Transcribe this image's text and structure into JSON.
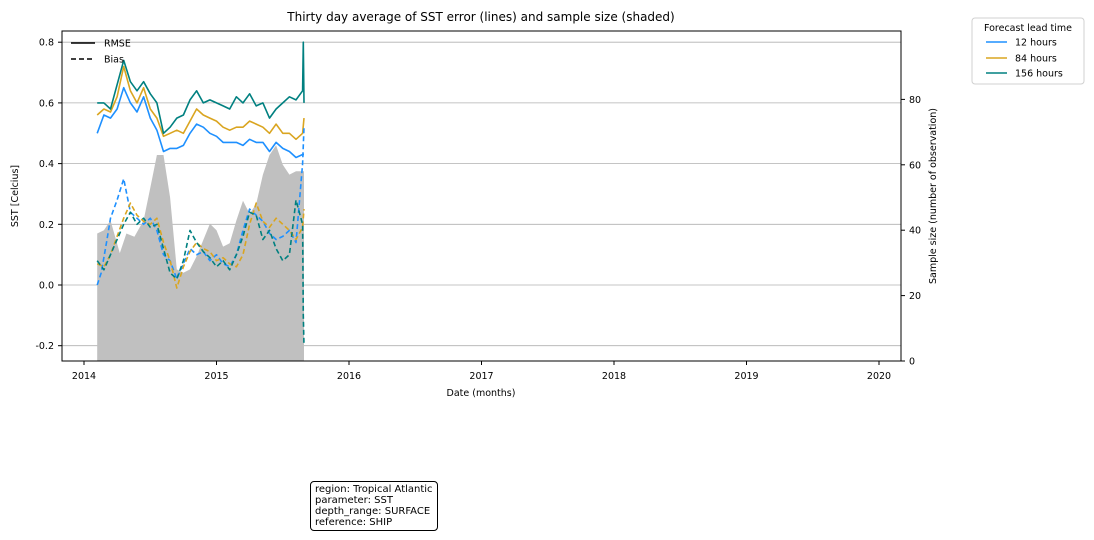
{
  "chart_data": {
    "type": "line",
    "title": "Thirty day average of SST error (lines) and sample size (shaded)",
    "xlabel": "Date (months)",
    "ylabel": "SST [Celcius]",
    "ylabel_right": "Sample size (number of observation)",
    "xlim": [
      2014.0,
      2020.0
    ],
    "ylim": [
      -0.25,
      0.82
    ],
    "ylim_right": [
      0,
      100
    ],
    "x_ticks": [
      2014,
      2015,
      2016,
      2017,
      2018,
      2019,
      2020
    ],
    "y_ticks": [
      -0.2,
      0.0,
      0.2,
      0.4,
      0.6,
      0.8
    ],
    "y_ticks_right": [
      0,
      20,
      40,
      60,
      80
    ],
    "grid": "horizontal",
    "style_legend": {
      "placement": "top-left",
      "entries": [
        {
          "label": "RMSE",
          "dash": "solid"
        },
        {
          "label": "Bias",
          "dash": "dashed"
        }
      ]
    },
    "color_legend": {
      "placement": "outside-top-right",
      "title": "Forecast lead time",
      "entries": [
        {
          "label": "12 hours",
          "color": "#1e90ff"
        },
        {
          "label": "84 hours",
          "color": "#daa520"
        },
        {
          "label": "156 hours",
          "color": "#008080"
        }
      ]
    },
    "sample_size": {
      "color": "#c0c0c0",
      "x": [
        2014.1,
        2014.15,
        2014.2,
        2014.27,
        2014.32,
        2014.38,
        2014.45,
        2014.5,
        2014.55,
        2014.6,
        2014.65,
        2014.7,
        2014.75,
        2014.8,
        2014.85,
        2014.9,
        2014.95,
        2015.0,
        2015.05,
        2015.1,
        2015.15,
        2015.2,
        2015.25,
        2015.3,
        2015.35,
        2015.4,
        2015.45,
        2015.5,
        2015.55,
        2015.6,
        2015.66
      ],
      "values": [
        39,
        40,
        43,
        33,
        39,
        38,
        43,
        53,
        63,
        63,
        50,
        28,
        27,
        28,
        32,
        37,
        42,
        40,
        35,
        36,
        43,
        49,
        45,
        48,
        57,
        63,
        66,
        60,
        57,
        58,
        58
      ]
    },
    "series": [
      {
        "name": "12 hours",
        "metric": "RMSE",
        "color": "#1e90ff",
        "dash": "solid",
        "x": [
          2014.1,
          2014.15,
          2014.2,
          2014.25,
          2014.3,
          2014.35,
          2014.4,
          2014.45,
          2014.5,
          2014.55,
          2014.6,
          2014.65,
          2014.7,
          2014.75,
          2014.8,
          2014.85,
          2014.9,
          2014.95,
          2015.0,
          2015.05,
          2015.1,
          2015.15,
          2015.2,
          2015.25,
          2015.3,
          2015.35,
          2015.4,
          2015.45,
          2015.5,
          2015.55,
          2015.6,
          2015.65,
          2015.66
        ],
        "values": [
          0.5,
          0.56,
          0.55,
          0.58,
          0.65,
          0.6,
          0.57,
          0.62,
          0.55,
          0.51,
          0.44,
          0.45,
          0.45,
          0.46,
          0.5,
          0.53,
          0.52,
          0.5,
          0.49,
          0.47,
          0.47,
          0.47,
          0.46,
          0.48,
          0.47,
          0.47,
          0.44,
          0.47,
          0.45,
          0.44,
          0.42,
          0.43,
          0.43
        ]
      },
      {
        "name": "84 hours",
        "metric": "RMSE",
        "color": "#daa520",
        "dash": "solid",
        "x": [
          2014.1,
          2014.15,
          2014.2,
          2014.25,
          2014.3,
          2014.35,
          2014.4,
          2014.45,
          2014.5,
          2014.55,
          2014.6,
          2014.65,
          2014.7,
          2014.75,
          2014.8,
          2014.85,
          2014.9,
          2014.95,
          2015.0,
          2015.05,
          2015.1,
          2015.15,
          2015.2,
          2015.25,
          2015.3,
          2015.35,
          2015.4,
          2015.45,
          2015.5,
          2015.55,
          2015.6,
          2015.65,
          2015.66
        ],
        "values": [
          0.56,
          0.58,
          0.57,
          0.62,
          0.72,
          0.64,
          0.6,
          0.65,
          0.58,
          0.55,
          0.49,
          0.5,
          0.51,
          0.5,
          0.54,
          0.58,
          0.56,
          0.55,
          0.54,
          0.52,
          0.51,
          0.52,
          0.52,
          0.54,
          0.53,
          0.52,
          0.5,
          0.53,
          0.5,
          0.5,
          0.48,
          0.5,
          0.55
        ]
      },
      {
        "name": "156 hours",
        "metric": "RMSE",
        "color": "#008080",
        "dash": "solid",
        "x": [
          2014.1,
          2014.15,
          2014.2,
          2014.25,
          2014.3,
          2014.35,
          2014.4,
          2014.45,
          2014.5,
          2014.55,
          2014.6,
          2014.65,
          2014.7,
          2014.75,
          2014.8,
          2014.85,
          2014.9,
          2014.95,
          2015.0,
          2015.05,
          2015.1,
          2015.15,
          2015.2,
          2015.25,
          2015.3,
          2015.35,
          2015.4,
          2015.45,
          2015.5,
          2015.55,
          2015.6,
          2015.65,
          2015.655,
          2015.66
        ],
        "values": [
          0.6,
          0.6,
          0.58,
          0.66,
          0.74,
          0.67,
          0.64,
          0.67,
          0.63,
          0.6,
          0.5,
          0.52,
          0.55,
          0.56,
          0.61,
          0.64,
          0.6,
          0.61,
          0.6,
          0.59,
          0.58,
          0.62,
          0.6,
          0.63,
          0.59,
          0.6,
          0.55,
          0.58,
          0.6,
          0.62,
          0.61,
          0.64,
          0.8,
          0.6
        ]
      },
      {
        "name": "12 hours",
        "metric": "Bias",
        "color": "#1e90ff",
        "dash": "dashed",
        "x": [
          2014.1,
          2014.13,
          2014.17,
          2014.2,
          2014.25,
          2014.3,
          2014.35,
          2014.4,
          2014.45,
          2014.5,
          2014.55,
          2014.6,
          2014.65,
          2014.7,
          2014.75,
          2014.8,
          2014.85,
          2014.9,
          2014.95,
          2015.0,
          2015.05,
          2015.1,
          2015.15,
          2015.2,
          2015.25,
          2015.3,
          2015.35,
          2015.4,
          2015.45,
          2015.5,
          2015.55,
          2015.6,
          2015.65,
          2015.66
        ],
        "values": [
          0.0,
          0.04,
          0.14,
          0.22,
          0.28,
          0.35,
          0.24,
          0.22,
          0.2,
          0.22,
          0.18,
          0.1,
          0.08,
          0.02,
          0.07,
          0.12,
          0.1,
          0.11,
          0.08,
          0.1,
          0.07,
          0.06,
          0.1,
          0.18,
          0.25,
          0.23,
          0.21,
          0.17,
          0.15,
          0.16,
          0.18,
          0.14,
          0.4,
          0.52
        ]
      },
      {
        "name": "84 hours",
        "metric": "Bias",
        "color": "#daa520",
        "dash": "dashed",
        "x": [
          2014.1,
          2014.15,
          2014.2,
          2014.25,
          2014.3,
          2014.35,
          2014.4,
          2014.45,
          2014.5,
          2014.55,
          2014.6,
          2014.65,
          2014.7,
          2014.75,
          2014.8,
          2014.85,
          2014.9,
          2014.95,
          2015.0,
          2015.05,
          2015.1,
          2015.15,
          2015.2,
          2015.25,
          2015.3,
          2015.35,
          2015.4,
          2015.45,
          2015.5,
          2015.55,
          2015.6,
          2015.65,
          2015.66
        ],
        "values": [
          0.07,
          0.06,
          0.1,
          0.16,
          0.22,
          0.27,
          0.23,
          0.21,
          0.2,
          0.22,
          0.14,
          0.08,
          -0.01,
          0.06,
          0.11,
          0.14,
          0.12,
          0.11,
          0.08,
          0.09,
          0.07,
          0.06,
          0.1,
          0.2,
          0.27,
          0.21,
          0.19,
          0.22,
          0.2,
          0.18,
          0.15,
          0.19,
          0.25
        ]
      },
      {
        "name": "156 hours",
        "metric": "Bias",
        "color": "#008080",
        "dash": "dashed",
        "x": [
          2014.1,
          2014.15,
          2014.2,
          2014.25,
          2014.3,
          2014.35,
          2014.4,
          2014.45,
          2014.5,
          2014.55,
          2014.6,
          2014.65,
          2014.7,
          2014.75,
          2014.8,
          2014.85,
          2014.9,
          2014.95,
          2015.0,
          2015.05,
          2015.1,
          2015.15,
          2015.2,
          2015.25,
          2015.3,
          2015.35,
          2015.4,
          2015.45,
          2015.5,
          2015.55,
          2015.6,
          2015.65,
          2015.655,
          2015.66
        ],
        "values": [
          0.08,
          0.05,
          0.1,
          0.15,
          0.2,
          0.24,
          0.2,
          0.22,
          0.19,
          0.2,
          0.12,
          0.04,
          0.02,
          0.08,
          0.18,
          0.14,
          0.11,
          0.09,
          0.06,
          0.08,
          0.05,
          0.1,
          0.16,
          0.24,
          0.23,
          0.15,
          0.18,
          0.12,
          0.08,
          0.1,
          0.28,
          0.2,
          -0.1,
          -0.2
        ]
      }
    ]
  },
  "info_box": {
    "lines": [
      "region: Tropical Atlantic",
      "parameter: SST",
      "depth_range: SURFACE",
      "reference: SHIP"
    ]
  }
}
